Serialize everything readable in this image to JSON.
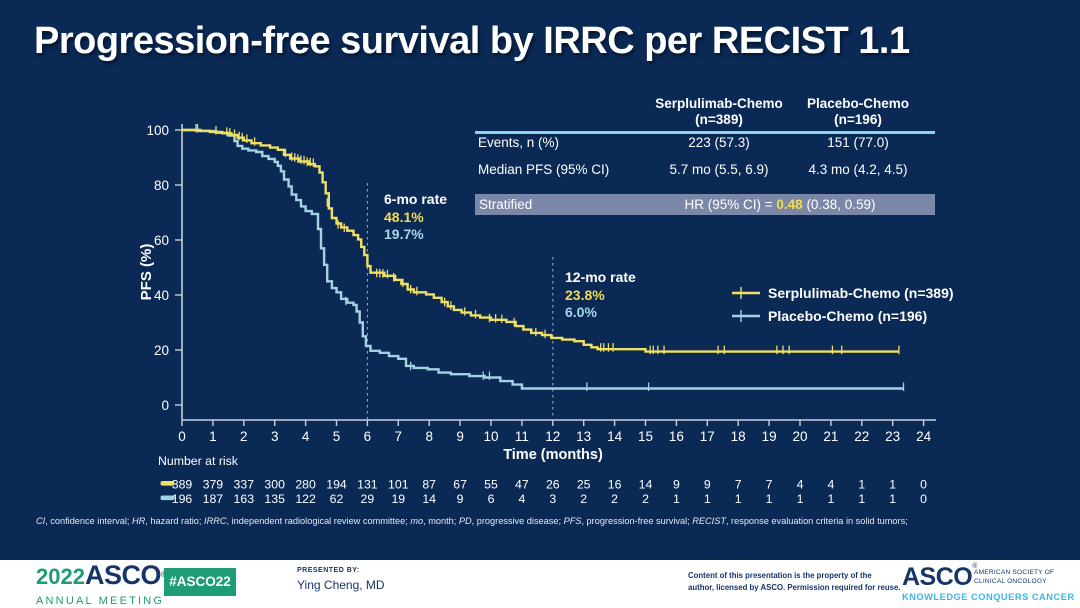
{
  "slide": {
    "title": "Progression-free survival by IRRC per RECIST 1.1",
    "background": "#0A2A55"
  },
  "summary_table": {
    "columns": [
      {
        "line1": "Serplulimab-Chemo",
        "line2": "(n=389)"
      },
      {
        "line1": "Placebo-Chemo",
        "line2": "(n=196)"
      }
    ],
    "rows": [
      {
        "label": "Events, n (%)",
        "values": [
          "223 (57.3)",
          "151 (77.0)"
        ]
      },
      {
        "label": "Median PFS (95% CI)",
        "values": [
          "5.7 mo (5.5, 6.9)",
          "4.3 mo (4.2, 4.5)"
        ]
      }
    ],
    "stratified": {
      "label": "Stratified",
      "hr_prefix": "HR (95% CI) = ",
      "hr_value": "0.48",
      "hr_suffix": " (0.38, 0.59)"
    }
  },
  "annotations": {
    "six_mo": {
      "title": "6-mo rate",
      "serplulimab": "48.1%",
      "placebo": "19.7%"
    },
    "twelve_mo": {
      "title": "12-mo rate",
      "serplulimab": "23.8%",
      "placebo": "6.0%"
    }
  },
  "chart_data": {
    "type": "line",
    "subtype": "kaplan-meier-step",
    "title": "Progression-free survival by IRRC per RECIST 1.1",
    "xlabel": "Time (months)",
    "ylabel": "PFS (%)",
    "xlim": [
      0,
      24
    ],
    "ylim": [
      0,
      100
    ],
    "xticks": [
      0,
      1,
      2,
      3,
      4,
      5,
      6,
      7,
      8,
      9,
      10,
      11,
      12,
      13,
      14,
      15,
      16,
      17,
      18,
      19,
      20,
      21,
      22,
      23,
      24
    ],
    "yticks": [
      0,
      20,
      40,
      60,
      80,
      100
    ],
    "grid": false,
    "legend_position": "right-middle",
    "reference_months": [
      6,
      12
    ],
    "series": [
      {
        "name": "Serplulimab-Chemo (n=389)",
        "color": "#EFDF63",
        "rate_6mo": 48.1,
        "rate_12mo": 23.8,
        "steps": [
          [
            0,
            100
          ],
          [
            0.55,
            99.7
          ],
          [
            0.9,
            99.3
          ],
          [
            1.3,
            98.8
          ],
          [
            1.6,
            98.2
          ],
          [
            1.8,
            97.2
          ],
          [
            2,
            96.2
          ],
          [
            2.25,
            95.2
          ],
          [
            2.55,
            94.4
          ],
          [
            2.85,
            93.6
          ],
          [
            3.1,
            92.8
          ],
          [
            3.3,
            91
          ],
          [
            3.5,
            89.6
          ],
          [
            3.8,
            88.6
          ],
          [
            4.1,
            87.6
          ],
          [
            4.3,
            86.8
          ],
          [
            4.45,
            84.5
          ],
          [
            4.55,
            81
          ],
          [
            4.65,
            77
          ],
          [
            4.75,
            71.5
          ],
          [
            4.85,
            68
          ],
          [
            5,
            66
          ],
          [
            5.15,
            64.6
          ],
          [
            5.35,
            63.4
          ],
          [
            5.55,
            61.8
          ],
          [
            5.7,
            60.2
          ],
          [
            5.8,
            57.5
          ],
          [
            5.9,
            54.5
          ],
          [
            6,
            50.5
          ],
          [
            6.1,
            48.1
          ],
          [
            6.55,
            47
          ],
          [
            6.9,
            45.5
          ],
          [
            7.1,
            44
          ],
          [
            7.3,
            42
          ],
          [
            7.5,
            41
          ],
          [
            7.9,
            40.2
          ],
          [
            8.15,
            39
          ],
          [
            8.4,
            37.4
          ],
          [
            8.6,
            35.9
          ],
          [
            8.8,
            34.6
          ],
          [
            9.05,
            33.6
          ],
          [
            9.35,
            32.6
          ],
          [
            9.65,
            31.8
          ],
          [
            10,
            31
          ],
          [
            10.5,
            30.2
          ],
          [
            10.8,
            28.7
          ],
          [
            11.05,
            27.4
          ],
          [
            11.3,
            26.2
          ],
          [
            11.65,
            25.4
          ],
          [
            11.95,
            24.4
          ],
          [
            12.3,
            23.8
          ],
          [
            12.7,
            23.2
          ],
          [
            13,
            21.9
          ],
          [
            13.25,
            21
          ],
          [
            13.45,
            20.3
          ],
          [
            15,
            19.4
          ],
          [
            23.2,
            19.4
          ]
        ],
        "censors": [
          [
            0.5,
            100
          ],
          [
            1.1,
            99.3
          ],
          [
            1.45,
            98.8
          ],
          [
            1.55,
            98.5
          ],
          [
            1.7,
            98
          ],
          [
            1.85,
            97.2
          ],
          [
            1.95,
            96.8
          ],
          [
            2.1,
            96.2
          ],
          [
            2.35,
            95.2
          ],
          [
            3.35,
            91
          ],
          [
            3.55,
            89.6
          ],
          [
            3.65,
            89.4
          ],
          [
            3.75,
            89
          ],
          [
            3.85,
            88.6
          ],
          [
            3.95,
            88.4
          ],
          [
            4.05,
            87.8
          ],
          [
            4.15,
            87.7
          ],
          [
            4.25,
            87.5
          ],
          [
            4.7,
            73
          ],
          [
            5.05,
            65
          ],
          [
            5.25,
            63.8
          ],
          [
            6.3,
            47.4
          ],
          [
            6.4,
            47.3
          ],
          [
            6.5,
            47.2
          ],
          [
            6.65,
            47
          ],
          [
            6.85,
            45.8
          ],
          [
            7.15,
            43.8
          ],
          [
            7.4,
            41.5
          ],
          [
            7.6,
            40.8
          ],
          [
            8.5,
            36.8
          ],
          [
            8.7,
            35.5
          ],
          [
            9.15,
            33.4
          ],
          [
            9.5,
            32.4
          ],
          [
            9.95,
            31
          ],
          [
            10.15,
            30.9
          ],
          [
            10.35,
            30.7
          ],
          [
            10.75,
            29.5
          ],
          [
            11.45,
            25.9
          ],
          [
            11.75,
            25.2
          ],
          [
            13.55,
            20.3
          ],
          [
            13.65,
            20.3
          ],
          [
            13.8,
            20.3
          ],
          [
            13.95,
            20.3
          ],
          [
            15.15,
            19.4
          ],
          [
            15.25,
            19.4
          ],
          [
            15.4,
            19.4
          ],
          [
            15.6,
            19.4
          ],
          [
            17.35,
            19.4
          ],
          [
            17.55,
            19.4
          ],
          [
            19.25,
            19.4
          ],
          [
            19.45,
            19.4
          ],
          [
            19.65,
            19.4
          ],
          [
            21.05,
            19.4
          ],
          [
            21.35,
            19.4
          ],
          [
            23.2,
            19.4
          ]
        ]
      },
      {
        "name": "Placebo-Chemo (n=196)",
        "color": "#A3D2E2",
        "rate_6mo": 19.7,
        "rate_12mo": 6.0,
        "steps": [
          [
            0,
            100
          ],
          [
            0.6,
            99.6
          ],
          [
            1.1,
            99
          ],
          [
            1.5,
            98
          ],
          [
            1.7,
            96
          ],
          [
            1.8,
            94.2
          ],
          [
            1.95,
            93.2
          ],
          [
            2.15,
            92.6
          ],
          [
            2.4,
            92
          ],
          [
            2.6,
            90.5
          ],
          [
            2.8,
            89.5
          ],
          [
            3,
            88.4
          ],
          [
            3.1,
            87
          ],
          [
            3.2,
            85
          ],
          [
            3.3,
            82
          ],
          [
            3.45,
            79.5
          ],
          [
            3.55,
            76.5
          ],
          [
            3.7,
            74.5
          ],
          [
            3.85,
            72.2
          ],
          [
            4,
            70.5
          ],
          [
            4.2,
            69.5
          ],
          [
            4.4,
            64
          ],
          [
            4.5,
            57
          ],
          [
            4.6,
            51
          ],
          [
            4.7,
            45
          ],
          [
            4.85,
            42.5
          ],
          [
            5,
            41
          ],
          [
            5.15,
            38.6
          ],
          [
            5.35,
            37.2
          ],
          [
            5.55,
            36.4
          ],
          [
            5.65,
            34
          ],
          [
            5.75,
            30
          ],
          [
            5.85,
            25
          ],
          [
            5.95,
            21.5
          ],
          [
            6.1,
            19.7
          ],
          [
            6.4,
            19
          ],
          [
            6.7,
            17.8
          ],
          [
            7,
            16.8
          ],
          [
            7.25,
            14.2
          ],
          [
            7.5,
            13.5
          ],
          [
            7.95,
            13
          ],
          [
            8.3,
            11.8
          ],
          [
            8.7,
            11.2
          ],
          [
            9.3,
            10.5
          ],
          [
            9.8,
            10
          ],
          [
            10.3,
            8.7
          ],
          [
            10.7,
            7.4
          ],
          [
            11,
            6
          ],
          [
            23.35,
            6
          ]
        ],
        "censors": [
          [
            0.45,
            100
          ],
          [
            5.3,
            37.2
          ],
          [
            7.4,
            13.5
          ],
          [
            9.75,
            10
          ],
          [
            9.95,
            10
          ],
          [
            13.1,
            6
          ],
          [
            15.1,
            6
          ],
          [
            23.35,
            6
          ]
        ]
      }
    ]
  },
  "risk_table": {
    "title": "Number at risk",
    "rows": [
      {
        "series": "Serplulimab-Chemo",
        "color": "#EFDF63",
        "counts": [
          389,
          379,
          337,
          300,
          280,
          194,
          131,
          101,
          87,
          67,
          55,
          47,
          26,
          25,
          16,
          14,
          9,
          9,
          7,
          7,
          4,
          4,
          1,
          1,
          0
        ]
      },
      {
        "series": "Placebo-Chemo",
        "color": "#A3D2E2",
        "counts": [
          196,
          187,
          163,
          135,
          122,
          62,
          29,
          19,
          14,
          9,
          6,
          4,
          3,
          2,
          2,
          2,
          1,
          1,
          1,
          1,
          1,
          1,
          1,
          1,
          0
        ]
      }
    ]
  },
  "footnote": {
    "segments": [
      {
        "t": "CI",
        "i": true
      },
      {
        "t": ", confidence interval; ",
        "i": false
      },
      {
        "t": "HR",
        "i": true
      },
      {
        "t": ", hazard ratio; ",
        "i": false
      },
      {
        "t": "IRRC",
        "i": true
      },
      {
        "t": ", independent radiological review committee; ",
        "i": false
      },
      {
        "t": "mo",
        "i": true
      },
      {
        "t": ", month; ",
        "i": false
      },
      {
        "t": "PD",
        "i": true
      },
      {
        "t": ", progressive disease; ",
        "i": false
      },
      {
        "t": "PFS",
        "i": true
      },
      {
        "t": ", progression-free survival; ",
        "i": false
      },
      {
        "t": "RECIST",
        "i": true
      },
      {
        "t": ", response evaluation criteria in solid tumors;",
        "i": false
      }
    ]
  },
  "footer_bar": {
    "logo": {
      "year": "2022",
      "name": "ASCO",
      "reg": "®",
      "sub": "ANNUAL MEETING"
    },
    "hashtag": "#ASCO22",
    "presented_by_label": "PRESENTED BY:",
    "presenter": "Ying Cheng, MD",
    "rights_line1": "Content of this presentation is the property of the",
    "rights_line2": "author, licensed by ASCO. Permission required for reuse.",
    "asco_logo": {
      "name": "ASCO",
      "reg": "®",
      "org_line1": "AMERICAN SOCIETY OF",
      "org_line2": "CLINICAL ONCOLOGY",
      "tagline": "KNOWLEDGE CONQUERS CANCER"
    }
  },
  "colors": {
    "background": "#0A2A55",
    "serplulimab": "#EFDF63",
    "placebo": "#A3D2E2",
    "accent_yellow": "#F2DC4E",
    "stratified_row_bg": "#7B87A7",
    "table_rule": "#8FD4E3",
    "axis": "#C9CFDB",
    "asco_green": "#1E9B77",
    "asco_navy": "#16366B",
    "asco_lightblue": "#3FB4E5"
  }
}
